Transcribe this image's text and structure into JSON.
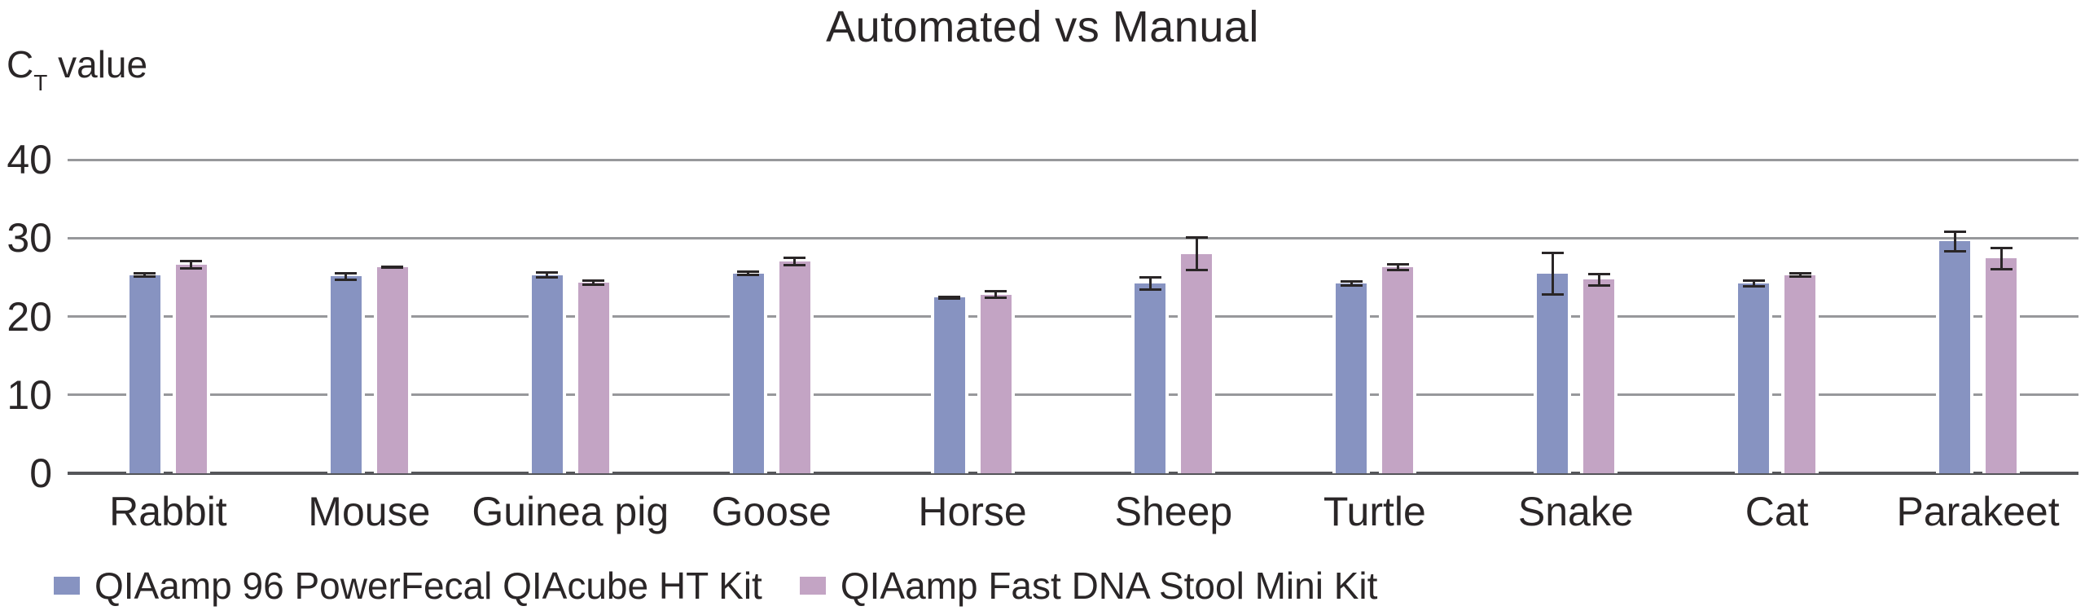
{
  "title": "Automated vs Manual",
  "y_axis_label": {
    "base": "C",
    "sub": "T",
    "rest": " value"
  },
  "colors": {
    "series1": "#8793c1",
    "series2": "#c3a4c4",
    "gridline": "#97989b",
    "axis": "#55565a",
    "error_bar": "#2a2627",
    "text": "#2a2627"
  },
  "chart_data": {
    "type": "bar",
    "title": "Automated vs Manual",
    "ylabel": "CT value",
    "xlabel": "",
    "categories": [
      "Rabbit",
      "Mouse",
      "Guinea pig",
      "Goose",
      "Horse",
      "Sheep",
      "Turtle",
      "Snake",
      "Cat",
      "Parakeet"
    ],
    "series": [
      {
        "name": "QIAamp 96 PowerFecal QIAcube HT Kit",
        "color": "#8793c1",
        "values": [
          25.3,
          25.1,
          25.3,
          25.5,
          22.4,
          24.2,
          24.2,
          25.5,
          24.2,
          29.6
        ],
        "errors": [
          0.4,
          0.6,
          0.5,
          0.4,
          0.3,
          0.9,
          0.4,
          2.8,
          0.5,
          1.4
        ]
      },
      {
        "name": "QIAamp Fast DNA Stool Mini Kit",
        "color": "#c3a4c4",
        "values": [
          26.6,
          26.3,
          24.3,
          27.0,
          22.8,
          28.0,
          26.3,
          24.7,
          25.3,
          27.4
        ],
        "errors": [
          0.6,
          0.2,
          0.4,
          0.6,
          0.6,
          2.2,
          0.5,
          0.9,
          0.4,
          1.5
        ]
      }
    ],
    "yticks": [
      0,
      10,
      20,
      30,
      40
    ],
    "ylim": [
      0,
      40
    ],
    "grid": true,
    "error_bars": true,
    "legend_position": "bottom-left"
  }
}
